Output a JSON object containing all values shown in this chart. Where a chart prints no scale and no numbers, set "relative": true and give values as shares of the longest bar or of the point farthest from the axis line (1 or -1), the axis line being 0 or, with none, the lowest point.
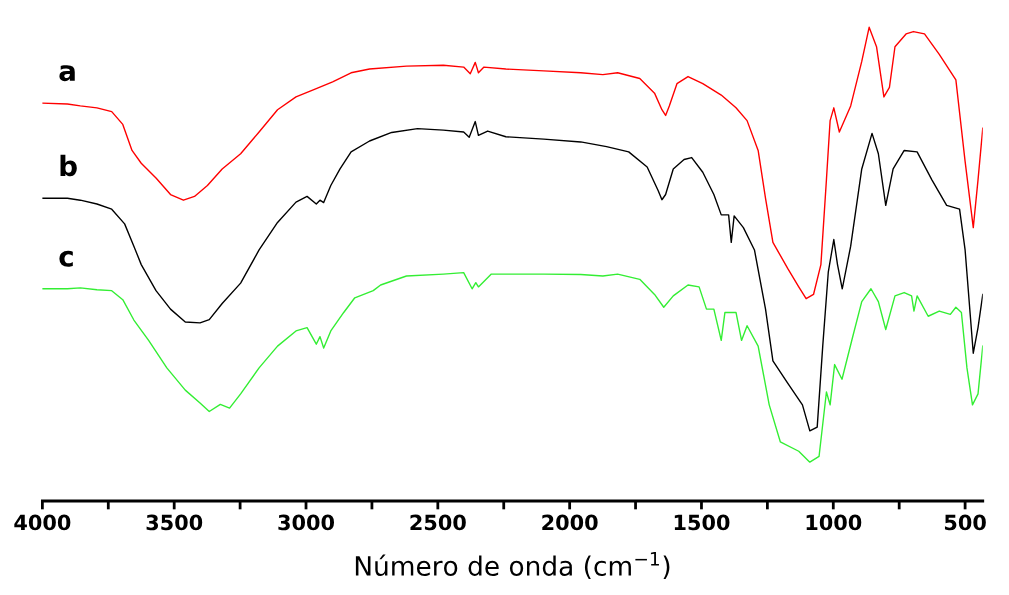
{
  "chart_data": {
    "type": "line",
    "relative": true,
    "xlabel": "Número de onda (cm$^{−1}$)",
    "xlim": [
      4000,
      433
    ],
    "xticks": [
      4000,
      {
        "value": 3750,
        "label": null
      },
      3500,
      {
        "value": 3250,
        "label": null
      },
      3000,
      {
        "value": 2750,
        "label": null
      },
      2500,
      {
        "value": 2250,
        "label": null
      },
      2000,
      {
        "value": 1750,
        "label": null
      },
      1500,
      {
        "value": 1250,
        "label": null
      },
      1000,
      {
        "value": 750,
        "label": null
      },
      500
    ],
    "tick_labels": "x",
    "grid": false,
    "legend": false,
    "marker": "none",
    "line_style": "solid",
    "series": [
      {
        "name": "a",
        "color": "#ff0000",
        "x": [
          4000,
          3905,
          3856,
          3793,
          3737,
          3695,
          3660,
          3625,
          3569,
          3514,
          3465,
          3423,
          3374,
          3318,
          3248,
          3178,
          3108,
          3038,
          2968,
          2899,
          2829,
          2759,
          2619,
          2479,
          2402,
          2377,
          2358,
          2346,
          2325,
          2242,
          2098,
          1958,
          1874,
          1818,
          1734,
          1678,
          1650,
          1636,
          1622,
          1593,
          1551,
          1495,
          1425,
          1369,
          1327,
          1285,
          1257,
          1229,
          1173,
          1131,
          1103,
          1075,
          1047,
          1026,
          1012,
          998,
          977,
          934,
          892,
          864,
          836,
          808,
          787,
          766,
          724,
          696,
          654,
          598,
          535,
          500,
          469,
          451,
          433
        ],
        "values": [
          0.84,
          0.838,
          0.834,
          0.83,
          0.822,
          0.795,
          0.74,
          0.713,
          0.682,
          0.647,
          0.635,
          0.643,
          0.666,
          0.701,
          0.733,
          0.779,
          0.826,
          0.853,
          0.869,
          0.885,
          0.904,
          0.912,
          0.918,
          0.92,
          0.916,
          0.902,
          0.926,
          0.904,
          0.916,
          0.912,
          0.908,
          0.904,
          0.9,
          0.904,
          0.892,
          0.861,
          0.826,
          0.814,
          0.834,
          0.881,
          0.896,
          0.881,
          0.857,
          0.83,
          0.803,
          0.74,
          0.639,
          0.546,
          0.491,
          0.452,
          0.427,
          0.436,
          0.499,
          0.678,
          0.803,
          0.83,
          0.779,
          0.834,
          0.928,
          1.0,
          0.959,
          0.853,
          0.873,
          0.959,
          0.986,
          0.991,
          0.986,
          0.943,
          0.889,
          0.717,
          0.577,
          0.678,
          0.787
        ]
      },
      {
        "name": "b",
        "color": "#000000",
        "x": [
          4000,
          3905,
          3856,
          3793,
          3737,
          3688,
          3653,
          3625,
          3569,
          3514,
          3458,
          3402,
          3367,
          3318,
          3248,
          3178,
          3108,
          3038,
          2996,
          2961,
          2947,
          2933,
          2906,
          2871,
          2829,
          2759,
          2675,
          2577,
          2479,
          2402,
          2381,
          2358,
          2346,
          2311,
          2242,
          2098,
          1958,
          1860,
          1776,
          1706,
          1664,
          1650,
          1636,
          1607,
          1566,
          1537,
          1495,
          1453,
          1425,
          1397,
          1387,
          1376,
          1341,
          1299,
          1257,
          1229,
          1173,
          1117,
          1089,
          1061,
          1040,
          1019,
          998,
          984,
          966,
          934,
          892,
          853,
          829,
          801,
          773,
          731,
          682,
          626,
          570,
          521,
          500,
          469,
          451,
          433
        ],
        "values": [
          0.639,
          0.639,
          0.635,
          0.627,
          0.616,
          0.585,
          0.538,
          0.499,
          0.444,
          0.405,
          0.378,
          0.376,
          0.383,
          0.417,
          0.46,
          0.53,
          0.588,
          0.631,
          0.643,
          0.627,
          0.635,
          0.63,
          0.666,
          0.701,
          0.737,
          0.76,
          0.778,
          0.786,
          0.783,
          0.779,
          0.768,
          0.801,
          0.772,
          0.781,
          0.769,
          0.764,
          0.758,
          0.748,
          0.737,
          0.705,
          0.655,
          0.636,
          0.647,
          0.701,
          0.721,
          0.725,
          0.694,
          0.647,
          0.604,
          0.604,
          0.546,
          0.602,
          0.577,
          0.53,
          0.405,
          0.296,
          0.249,
          0.203,
          0.148,
          0.156,
          0.327,
          0.483,
          0.552,
          0.499,
          0.448,
          0.538,
          0.701,
          0.776,
          0.733,
          0.624,
          0.701,
          0.74,
          0.737,
          0.678,
          0.624,
          0.616,
          0.53,
          0.312,
          0.366,
          0.436
        ]
      },
      {
        "name": "c",
        "color": "#33ee33",
        "x": [
          4000,
          3905,
          3856,
          3793,
          3737,
          3695,
          3653,
          3597,
          3528,
          3458,
          3402,
          3367,
          3325,
          3290,
          3248,
          3178,
          3108,
          3038,
          2996,
          2961,
          2947,
          2933,
          2906,
          2857,
          2815,
          2745,
          2717,
          2619,
          2479,
          2402,
          2370,
          2356,
          2346,
          2297,
          2242,
          2098,
          1958,
          1874,
          1818,
          1734,
          1678,
          1643,
          1607,
          1551,
          1509,
          1481,
          1453,
          1425,
          1411,
          1369,
          1348,
          1327,
          1285,
          1243,
          1201,
          1131,
          1089,
          1054,
          1026,
          1012,
          995,
          967,
          928,
          892,
          857,
          829,
          801,
          766,
          731,
          703,
          694,
          682,
          640,
          598,
          556,
          535,
          514,
          493,
          472,
          451,
          433
        ],
        "values": [
          0.448,
          0.448,
          0.45,
          0.446,
          0.444,
          0.425,
          0.382,
          0.339,
          0.281,
          0.234,
          0.207,
          0.189,
          0.204,
          0.196,
          0.226,
          0.281,
          0.327,
          0.359,
          0.366,
          0.331,
          0.347,
          0.323,
          0.359,
          0.398,
          0.429,
          0.444,
          0.456,
          0.475,
          0.479,
          0.482,
          0.448,
          0.461,
          0.452,
          0.479,
          0.479,
          0.479,
          0.478,
          0.475,
          0.479,
          0.468,
          0.436,
          0.409,
          0.433,
          0.456,
          0.452,
          0.405,
          0.405,
          0.339,
          0.398,
          0.398,
          0.339,
          0.37,
          0.327,
          0.203,
          0.125,
          0.105,
          0.082,
          0.094,
          0.23,
          0.203,
          0.288,
          0.257,
          0.343,
          0.421,
          0.448,
          0.421,
          0.362,
          0.433,
          0.44,
          0.433,
          0.401,
          0.433,
          0.39,
          0.401,
          0.394,
          0.409,
          0.398,
          0.281,
          0.203,
          0.226,
          0.327
        ]
      }
    ]
  }
}
